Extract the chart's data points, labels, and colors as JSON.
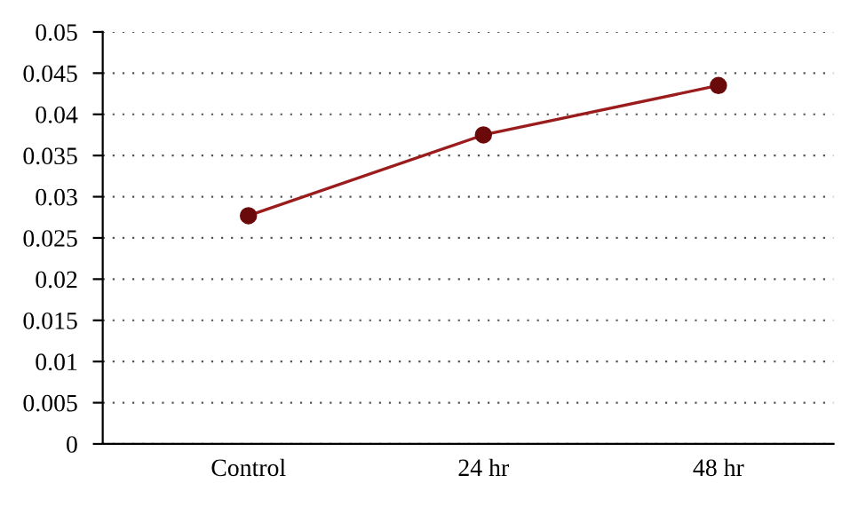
{
  "chart_data": {
    "type": "line",
    "categories": [
      "Control",
      "24 hr",
      "48 hr"
    ],
    "series": [
      {
        "color": "#9b1c1c",
        "values": [
          0.0277,
          0.0375,
          0.0435
        ]
      }
    ],
    "ylim": [
      0,
      0.05
    ],
    "yticks": [
      0,
      0.005,
      0.01,
      0.015,
      0.02,
      0.025,
      0.03,
      0.035,
      0.04,
      0.045,
      0.05
    ],
    "grid": "y",
    "marker": "circle",
    "line_style": "solid"
  }
}
